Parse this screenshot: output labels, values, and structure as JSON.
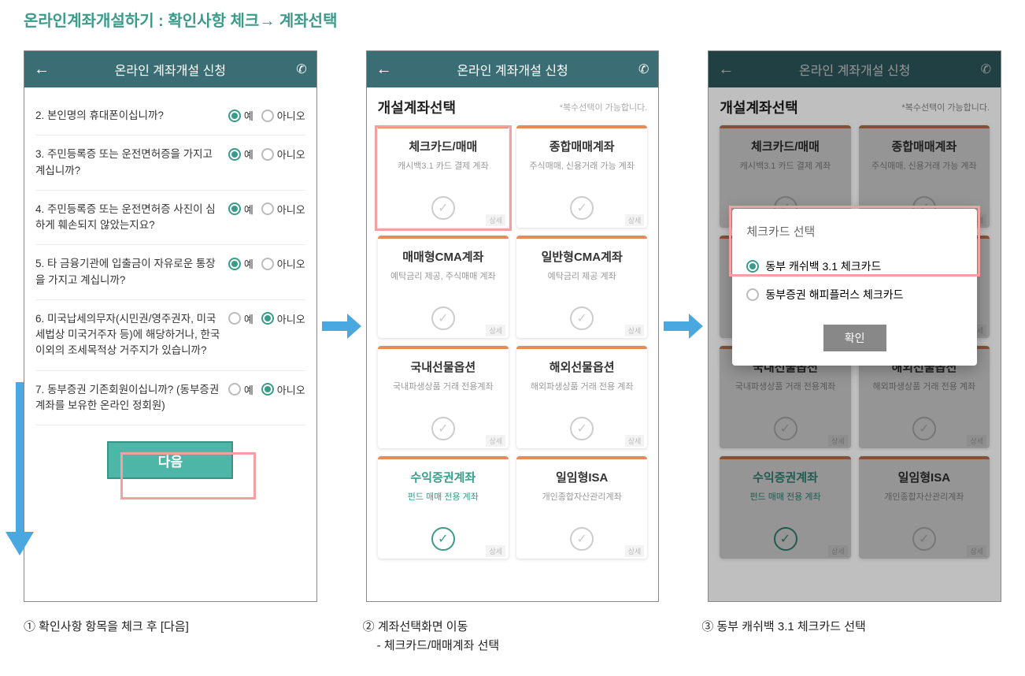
{
  "page_title": "온라인계좌개설하기 : 확인사항 체크→ 계좌선택",
  "colors": {
    "accent": "#3b9b8b",
    "header_bg": "#3a6e74",
    "button_bg": "#4db6a6",
    "highlight_border": "#f5a0a0",
    "arrow": "#4aa8e0",
    "card_accent": "#e38b5e"
  },
  "screen1": {
    "header": "온라인 계좌개설 신청",
    "yes": "예",
    "no": "아니오",
    "questions": [
      {
        "n": "2.",
        "text": "본인명의 휴대폰이십니까?",
        "sel": "yes"
      },
      {
        "n": "3.",
        "text": "주민등록증 또는 운전면허증을 가지고 계십니까?",
        "sel": "yes"
      },
      {
        "n": "4.",
        "text": "주민등록증 또는 운전면허증 사진이 심하게 훼손되지 않았는지요?",
        "sel": "yes"
      },
      {
        "n": "5.",
        "text": "타 금융기관에 입출금이 자유로운 통장을 가지고 계십니까?",
        "sel": "yes"
      },
      {
        "n": "6.",
        "text": "미국납세의무자(시민권/영주권자, 미국세법상 미국거주자 등)에 해당하거나, 한국이외의 조세목적상 거주지가 있습니까?",
        "sel": "no"
      },
      {
        "n": "7.",
        "text": "동부증권 기존회원이십니까? (동부증권 계좌를 보유한 온라인 정회원)",
        "sel": "no"
      }
    ],
    "next_label": "다음"
  },
  "screen2": {
    "header": "온라인 계좌개설 신청",
    "section_title": "개설계좌선택",
    "section_hint": "*복수선택이 가능합니다.",
    "detail_label": "상세",
    "cards": [
      {
        "title": "체크카드/매매",
        "sub": "캐시백3.1 카드 결제 계좌",
        "highlighted": true
      },
      {
        "title": "종합매매계좌",
        "sub": "주식매매, 신용거래 가능 계좌"
      },
      {
        "title": "매매형CMA계좌",
        "sub": "예탁금리 제공, 주식매매 계좌"
      },
      {
        "title": "일반형CMA계좌",
        "sub": "예탁금리 제공 계좌"
      },
      {
        "title": "국내선물옵션",
        "sub": "국내파생상품 거래 전용계좌"
      },
      {
        "title": "해외선물옵션",
        "sub": "해외파생상품 거래 전용 계좌"
      },
      {
        "title": "수익증권계좌",
        "sub": "펀드 매매 전용 계좌",
        "active": true
      },
      {
        "title": "일임형ISA",
        "sub": "개인종합자산관리계좌"
      }
    ]
  },
  "screen3": {
    "header": "온라인 계좌개설 신청",
    "modal_title": "체크카드 선택",
    "options": [
      {
        "label": "동부 캐쉬백 3.1 체크카드",
        "selected": true
      },
      {
        "label": "동부증권 해피플러스 체크카드",
        "selected": false
      }
    ],
    "confirm_label": "확인"
  },
  "captions": {
    "c1": "① 확인사항 항목을 체크 후 [다음]",
    "c2": "② 계좌선택화면 이동",
    "c2_sub": "- 체크카드/매매계좌 선택",
    "c3": "③ 동부 캐쉬백 3.1 체크카드 선택"
  }
}
